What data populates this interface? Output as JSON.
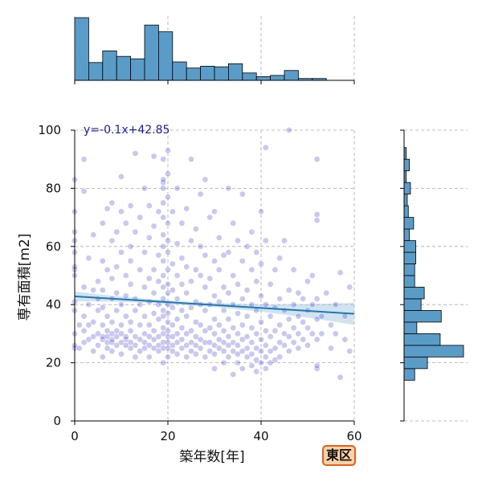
{
  "chart_data": {
    "type": "scatter",
    "xlabel": "築年数[年]",
    "ylabel": "専有面積[m2]",
    "xlim": [
      0,
      60
    ],
    "ylim": [
      0,
      100
    ],
    "x_ticks": [
      0,
      20,
      40,
      60
    ],
    "y_ticks": [
      0,
      20,
      40,
      60,
      80,
      100
    ],
    "grid": true,
    "district_label": "東区",
    "regression": {
      "label": "y=-0.1x+42.85",
      "slope": -0.1,
      "intercept": 42.85,
      "color": "#1f77b4",
      "band_color": "#a6c8e2"
    },
    "point_color": "#3a3acd",
    "bar_color": "#5b9bc8",
    "top_histogram": {
      "bin_edges": [
        0,
        3,
        6,
        9,
        12,
        15,
        18,
        21,
        24,
        27,
        30,
        33,
        36,
        39,
        42,
        45,
        48,
        51,
        54,
        57,
        60
      ],
      "counts": [
        102,
        29,
        48,
        39,
        35,
        90,
        79,
        30,
        20,
        23,
        22,
        27,
        12,
        6,
        8,
        16,
        3,
        3,
        0,
        0
      ]
    },
    "right_histogram": {
      "bin_edges": [
        14,
        18,
        22,
        26,
        30,
        34,
        38,
        42,
        46,
        50,
        54,
        58,
        62,
        66,
        70,
        74,
        78,
        82,
        86,
        90,
        94,
        98
      ],
      "counts": [
        10,
        22,
        56,
        34,
        12,
        35,
        16,
        19,
        10,
        10,
        11,
        11,
        5,
        9,
        4,
        3,
        6,
        2,
        5,
        2,
        0
      ]
    },
    "points": [
      [
        0,
        25
      ],
      [
        0,
        26
      ],
      [
        0,
        30
      ],
      [
        0,
        38
      ],
      [
        0,
        41
      ],
      [
        0,
        50
      ],
      [
        0,
        52
      ],
      [
        0,
        53
      ],
      [
        0,
        58
      ],
      [
        0,
        62
      ],
      [
        0,
        65
      ],
      [
        0,
        72
      ],
      [
        0,
        83
      ],
      [
        1,
        25
      ],
      [
        1,
        33
      ],
      [
        2,
        27
      ],
      [
        2,
        31
      ],
      [
        2,
        36
      ],
      [
        2,
        46
      ],
      [
        2,
        79
      ],
      [
        2,
        90
      ],
      [
        3,
        28
      ],
      [
        3,
        33
      ],
      [
        3,
        40
      ],
      [
        3,
        56
      ],
      [
        4,
        24
      ],
      [
        4,
        29
      ],
      [
        4,
        34
      ],
      [
        4,
        45
      ],
      [
        4,
        64
      ],
      [
        5,
        26
      ],
      [
        5,
        30
      ],
      [
        5,
        38
      ],
      [
        5,
        42
      ],
      [
        5,
        48
      ],
      [
        6,
        22
      ],
      [
        6,
        28
      ],
      [
        6,
        29
      ],
      [
        6,
        33
      ],
      [
        6,
        39
      ],
      [
        6,
        45
      ],
      [
        6,
        55
      ],
      [
        6,
        68
      ],
      [
        7,
        25
      ],
      [
        7,
        27
      ],
      [
        7,
        29
      ],
      [
        7,
        31
      ],
      [
        7,
        36
      ],
      [
        7,
        52
      ],
      [
        7,
        73
      ],
      [
        8,
        24
      ],
      [
        8,
        27
      ],
      [
        8,
        28
      ],
      [
        8,
        30
      ],
      [
        8,
        34
      ],
      [
        8,
        42
      ],
      [
        8,
        49
      ],
      [
        8,
        62
      ],
      [
        8,
        75
      ],
      [
        9,
        26
      ],
      [
        9,
        29
      ],
      [
        9,
        31
      ],
      [
        9,
        38
      ],
      [
        9,
        44
      ],
      [
        9,
        53
      ],
      [
        9,
        65
      ],
      [
        10,
        23
      ],
      [
        10,
        27
      ],
      [
        10,
        30
      ],
      [
        10,
        33
      ],
      [
        10,
        40
      ],
      [
        10,
        58
      ],
      [
        10,
        72
      ],
      [
        10,
        84
      ],
      [
        11,
        26
      ],
      [
        11,
        28
      ],
      [
        11,
        29
      ],
      [
        11,
        36
      ],
      [
        11,
        43
      ],
      [
        11,
        50
      ],
      [
        11,
        68
      ],
      [
        12,
        25
      ],
      [
        12,
        27
      ],
      [
        12,
        31
      ],
      [
        12,
        34
      ],
      [
        12,
        47
      ],
      [
        12,
        55
      ],
      [
        12,
        60
      ],
      [
        12,
        74
      ],
      [
        13,
        22
      ],
      [
        13,
        26
      ],
      [
        13,
        29
      ],
      [
        13,
        38
      ],
      [
        13,
        42
      ],
      [
        13,
        65
      ],
      [
        13,
        92
      ],
      [
        14,
        24
      ],
      [
        14,
        28
      ],
      [
        14,
        33
      ],
      [
        14,
        40
      ],
      [
        14,
        52
      ],
      [
        14,
        70
      ],
      [
        15,
        25
      ],
      [
        15,
        27
      ],
      [
        15,
        30
      ],
      [
        15,
        36
      ],
      [
        15,
        46
      ],
      [
        15,
        58
      ],
      [
        15,
        80
      ],
      [
        16,
        22
      ],
      [
        16,
        26
      ],
      [
        16,
        29
      ],
      [
        16,
        33
      ],
      [
        16,
        41
      ],
      [
        16,
        49
      ],
      [
        16,
        63
      ],
      [
        16,
        74
      ],
      [
        17,
        25
      ],
      [
        17,
        28
      ],
      [
        17,
        31
      ],
      [
        17,
        37
      ],
      [
        17,
        44
      ],
      [
        17,
        52
      ],
      [
        17,
        67
      ],
      [
        17,
        91
      ],
      [
        18,
        24
      ],
      [
        18,
        26
      ],
      [
        18,
        29
      ],
      [
        18,
        35
      ],
      [
        18,
        40
      ],
      [
        18,
        48
      ],
      [
        18,
        57
      ],
      [
        18,
        72
      ],
      [
        19,
        20
      ],
      [
        19,
        25
      ],
      [
        19,
        27
      ],
      [
        19,
        30
      ],
      [
        19,
        32
      ],
      [
        19,
        36
      ],
      [
        19,
        38
      ],
      [
        19,
        42
      ],
      [
        19,
        46
      ],
      [
        19,
        50
      ],
      [
        19,
        55
      ],
      [
        19,
        60
      ],
      [
        19,
        64
      ],
      [
        19,
        70
      ],
      [
        19,
        75
      ],
      [
        19,
        80
      ],
      [
        19,
        82
      ],
      [
        19,
        83
      ],
      [
        19,
        90
      ],
      [
        20,
        22
      ],
      [
        20,
        25
      ],
      [
        20,
        27
      ],
      [
        20,
        29
      ],
      [
        20,
        31
      ],
      [
        20,
        34
      ],
      [
        20,
        37
      ],
      [
        20,
        40
      ],
      [
        20,
        44
      ],
      [
        20,
        47
      ],
      [
        20,
        52
      ],
      [
        20,
        58
      ],
      [
        20,
        62
      ],
      [
        20,
        68
      ],
      [
        20,
        77
      ],
      [
        20,
        85
      ],
      [
        20,
        93
      ],
      [
        21,
        24
      ],
      [
        21,
        26
      ],
      [
        21,
        29
      ],
      [
        21,
        33
      ],
      [
        21,
        39
      ],
      [
        21,
        45
      ],
      [
        21,
        54
      ],
      [
        21,
        72
      ],
      [
        22,
        23
      ],
      [
        22,
        27
      ],
      [
        22,
        30
      ],
      [
        22,
        35
      ],
      [
        22,
        42
      ],
      [
        22,
        50
      ],
      [
        22,
        61
      ],
      [
        22,
        80
      ],
      [
        23,
        25
      ],
      [
        23,
        28
      ],
      [
        23,
        32
      ],
      [
        23,
        38
      ],
      [
        23,
        47
      ],
      [
        23,
        56
      ],
      [
        23,
        68
      ],
      [
        24,
        22
      ],
      [
        24,
        26
      ],
      [
        24,
        30
      ],
      [
        24,
        36
      ],
      [
        24,
        44
      ],
      [
        24,
        53
      ],
      [
        24,
        73
      ],
      [
        25,
        24
      ],
      [
        25,
        27
      ],
      [
        25,
        31
      ],
      [
        25,
        39
      ],
      [
        25,
        48
      ],
      [
        25,
        62
      ],
      [
        25,
        90
      ],
      [
        26,
        23
      ],
      [
        26,
        26
      ],
      [
        26,
        29
      ],
      [
        26,
        34
      ],
      [
        26,
        41
      ],
      [
        26,
        52
      ],
      [
        26,
        66
      ],
      [
        27,
        25
      ],
      [
        27,
        28
      ],
      [
        27,
        33
      ],
      [
        27,
        40
      ],
      [
        27,
        50
      ],
      [
        27,
        60
      ],
      [
        27,
        78
      ],
      [
        28,
        22
      ],
      [
        28,
        27
      ],
      [
        28,
        31
      ],
      [
        28,
        38
      ],
      [
        28,
        46
      ],
      [
        28,
        57
      ],
      [
        28,
        83
      ],
      [
        29,
        24
      ],
      [
        29,
        27
      ],
      [
        29,
        32
      ],
      [
        29,
        40
      ],
      [
        29,
        49
      ],
      [
        29,
        70
      ],
      [
        30,
        18
      ],
      [
        30,
        23
      ],
      [
        30,
        26
      ],
      [
        30,
        30
      ],
      [
        30,
        35
      ],
      [
        30,
        43
      ],
      [
        30,
        55
      ],
      [
        30,
        72
      ],
      [
        31,
        25
      ],
      [
        31,
        28
      ],
      [
        31,
        33
      ],
      [
        31,
        41
      ],
      [
        31,
        52
      ],
      [
        31,
        63
      ],
      [
        32,
        20
      ],
      [
        32,
        24
      ],
      [
        32,
        27
      ],
      [
        32,
        31
      ],
      [
        32,
        38
      ],
      [
        32,
        46
      ],
      [
        32,
        57
      ],
      [
        33,
        22
      ],
      [
        33,
        26
      ],
      [
        33,
        29
      ],
      [
        33,
        35
      ],
      [
        33,
        44
      ],
      [
        33,
        58
      ],
      [
        33,
        80
      ],
      [
        34,
        16
      ],
      [
        34,
        24
      ],
      [
        34,
        27
      ],
      [
        34,
        32
      ],
      [
        34,
        40
      ],
      [
        34,
        50
      ],
      [
        34,
        68
      ],
      [
        35,
        20
      ],
      [
        35,
        23
      ],
      [
        35,
        26
      ],
      [
        35,
        30
      ],
      [
        35,
        37
      ],
      [
        35,
        47
      ],
      [
        35,
        62
      ],
      [
        36,
        18
      ],
      [
        36,
        24
      ],
      [
        36,
        28
      ],
      [
        36,
        33
      ],
      [
        36,
        42
      ],
      [
        36,
        55
      ],
      [
        36,
        78
      ],
      [
        37,
        22
      ],
      [
        37,
        25
      ],
      [
        37,
        29
      ],
      [
        37,
        36
      ],
      [
        37,
        45
      ],
      [
        37,
        60
      ],
      [
        38,
        19
      ],
      [
        38,
        23
      ],
      [
        38,
        27
      ],
      [
        38,
        32
      ],
      [
        38,
        40
      ],
      [
        38,
        52
      ],
      [
        38,
        65
      ],
      [
        39,
        17
      ],
      [
        39,
        21
      ],
      [
        39,
        25
      ],
      [
        39,
        30
      ],
      [
        39,
        38
      ],
      [
        39,
        48
      ],
      [
        39,
        58
      ],
      [
        40,
        20
      ],
      [
        40,
        24
      ],
      [
        40,
        28
      ],
      [
        40,
        34
      ],
      [
        40,
        43
      ],
      [
        40,
        54
      ],
      [
        40,
        72
      ],
      [
        41,
        18
      ],
      [
        41,
        22
      ],
      [
        41,
        26
      ],
      [
        41,
        31
      ],
      [
        41,
        40
      ],
      [
        41,
        62
      ],
      [
        41,
        94
      ],
      [
        42,
        20
      ],
      [
        42,
        24
      ],
      [
        42,
        29
      ],
      [
        42,
        36
      ],
      [
        42,
        47
      ],
      [
        43,
        21
      ],
      [
        43,
        25
      ],
      [
        43,
        31
      ],
      [
        43,
        39
      ],
      [
        43,
        52
      ],
      [
        44,
        22
      ],
      [
        44,
        27
      ],
      [
        44,
        33
      ],
      [
        44,
        42
      ],
      [
        44,
        56
      ],
      [
        45,
        26
      ],
      [
        45,
        30
      ],
      [
        45,
        38
      ],
      [
        45,
        62
      ],
      [
        46,
        24
      ],
      [
        46,
        29
      ],
      [
        46,
        35
      ],
      [
        46,
        45
      ],
      [
        46,
        100
      ],
      [
        47,
        27
      ],
      [
        47,
        32
      ],
      [
        47,
        40
      ],
      [
        47,
        52
      ],
      [
        48,
        25
      ],
      [
        48,
        30
      ],
      [
        48,
        36
      ],
      [
        48,
        44
      ],
      [
        49,
        28
      ],
      [
        49,
        34
      ],
      [
        49,
        42
      ],
      [
        50,
        26
      ],
      [
        50,
        32
      ],
      [
        50,
        38
      ],
      [
        50,
        48
      ],
      [
        51,
        30
      ],
      [
        51,
        40
      ],
      [
        51,
        50
      ],
      [
        52,
        18
      ],
      [
        52,
        19
      ],
      [
        52,
        28
      ],
      [
        52,
        35
      ],
      [
        52,
        42
      ],
      [
        52,
        69
      ],
      [
        52,
        71
      ],
      [
        52,
        90
      ],
      [
        53,
        30
      ],
      [
        53,
        36
      ],
      [
        54,
        44
      ],
      [
        55,
        25
      ],
      [
        55,
        33
      ],
      [
        56,
        30
      ],
      [
        56,
        40
      ],
      [
        57,
        15
      ],
      [
        57,
        51
      ],
      [
        58,
        28
      ],
      [
        58,
        36
      ],
      [
        59,
        24
      ],
      [
        59,
        46
      ]
    ]
  }
}
